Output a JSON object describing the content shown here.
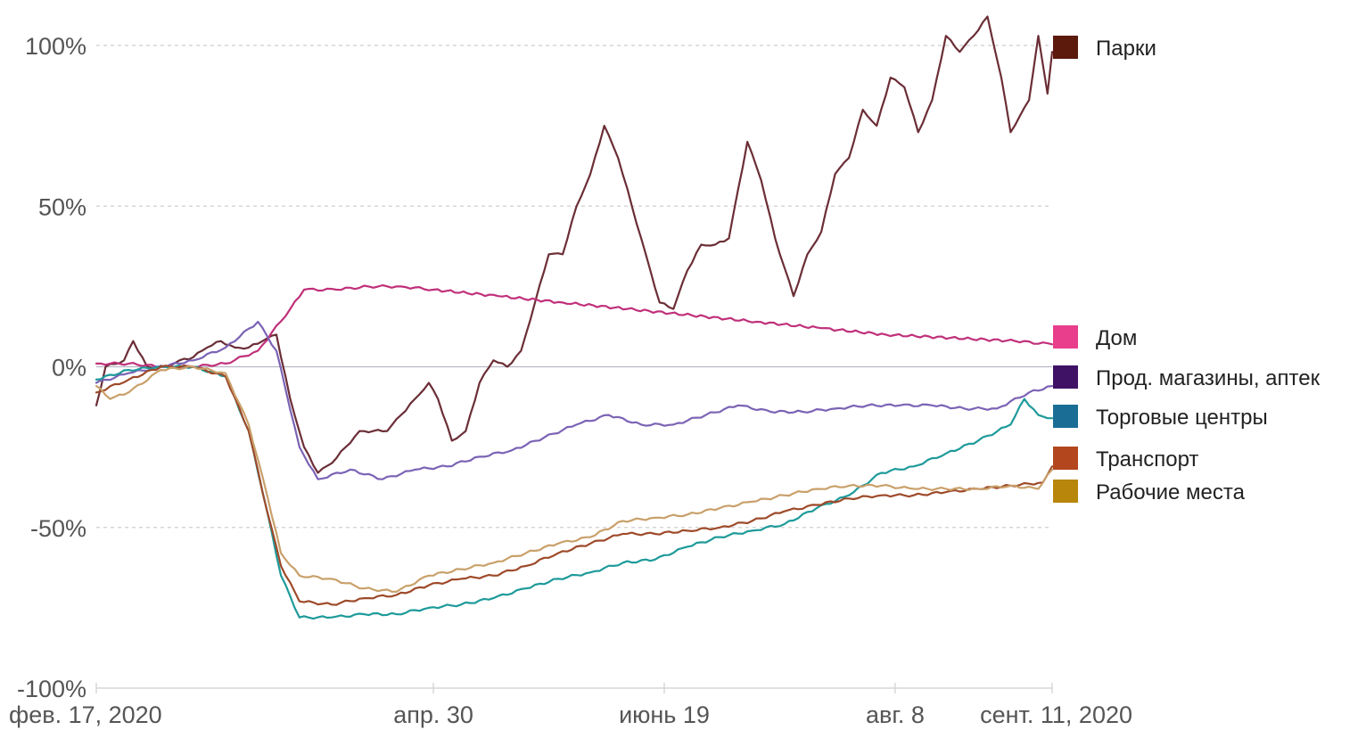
{
  "chart_data": {
    "type": "line",
    "title": "",
    "xlabel": "",
    "ylabel": "",
    "ylim": [
      -100,
      100
    ],
    "y_ticks": [
      {
        "value": 100,
        "label": "100%"
      },
      {
        "value": 50,
        "label": "50%"
      },
      {
        "value": 0,
        "label": "0%"
      },
      {
        "value": -50,
        "label": "-50%"
      },
      {
        "value": -100,
        "label": "-100%"
      }
    ],
    "x_range": [
      "2020-02-17",
      "2020-09-11"
    ],
    "x_ticks": [
      {
        "date": "2020-02-17",
        "label": "фев. 17, 2020"
      },
      {
        "date": "2020-04-30",
        "label": "апр. 30"
      },
      {
        "date": "2020-06-19",
        "label": "июнь 19"
      },
      {
        "date": "2020-08-08",
        "label": "авг. 8"
      },
      {
        "date": "2020-09-11",
        "label": "сент. 11, 2020"
      }
    ],
    "grid": true,
    "legend_placement": "right",
    "series": [
      {
        "name": "Парки",
        "color": "#6b2e36",
        "legend_color": "#5c1a0c",
        "points": [
          [
            "2020-02-17",
            -12
          ],
          [
            "2020-02-19",
            0
          ],
          [
            "2020-02-23",
            2
          ],
          [
            "2020-02-25",
            8
          ],
          [
            "2020-02-28",
            0
          ],
          [
            "2020-03-03",
            0
          ],
          [
            "2020-03-06",
            2
          ],
          [
            "2020-03-09",
            3
          ],
          [
            "2020-03-12",
            6
          ],
          [
            "2020-03-15",
            8
          ],
          [
            "2020-03-18",
            6
          ],
          [
            "2020-03-21",
            6
          ],
          [
            "2020-03-24",
            8
          ],
          [
            "2020-03-27",
            10
          ],
          [
            "2020-03-30",
            -10
          ],
          [
            "2020-04-02",
            -25
          ],
          [
            "2020-04-05",
            -33
          ],
          [
            "2020-04-08",
            -30
          ],
          [
            "2020-04-11",
            -25
          ],
          [
            "2020-04-14",
            -20
          ],
          [
            "2020-04-17",
            -20
          ],
          [
            "2020-04-20",
            -20
          ],
          [
            "2020-04-23",
            -15
          ],
          [
            "2020-04-26",
            -10
          ],
          [
            "2020-04-29",
            -5
          ],
          [
            "2020-05-01",
            -10
          ],
          [
            "2020-05-04",
            -23
          ],
          [
            "2020-05-07",
            -20
          ],
          [
            "2020-05-10",
            -5
          ],
          [
            "2020-05-13",
            2
          ],
          [
            "2020-05-16",
            0
          ],
          [
            "2020-05-19",
            5
          ],
          [
            "2020-05-22",
            20
          ],
          [
            "2020-05-25",
            35
          ],
          [
            "2020-05-28",
            35
          ],
          [
            "2020-05-31",
            50
          ],
          [
            "2020-06-03",
            60
          ],
          [
            "2020-06-06",
            75
          ],
          [
            "2020-06-09",
            65
          ],
          [
            "2020-06-12",
            50
          ],
          [
            "2020-06-15",
            35
          ],
          [
            "2020-06-18",
            20
          ],
          [
            "2020-06-21",
            18
          ],
          [
            "2020-06-24",
            30
          ],
          [
            "2020-06-27",
            38
          ],
          [
            "2020-06-30",
            38
          ],
          [
            "2020-07-03",
            40
          ],
          [
            "2020-07-07",
            70
          ],
          [
            "2020-07-10",
            58
          ],
          [
            "2020-07-13",
            40
          ],
          [
            "2020-07-17",
            22
          ],
          [
            "2020-07-20",
            35
          ],
          [
            "2020-07-23",
            42
          ],
          [
            "2020-07-26",
            60
          ],
          [
            "2020-07-29",
            65
          ],
          [
            "2020-08-01",
            80
          ],
          [
            "2020-08-04",
            75
          ],
          [
            "2020-08-07",
            90
          ],
          [
            "2020-08-10",
            87
          ],
          [
            "2020-08-13",
            73
          ],
          [
            "2020-08-16",
            83
          ],
          [
            "2020-08-19",
            103
          ],
          [
            "2020-08-22",
            98
          ],
          [
            "2020-08-25",
            103
          ],
          [
            "2020-08-28",
            109
          ],
          [
            "2020-08-31",
            90
          ],
          [
            "2020-09-02",
            73
          ],
          [
            "2020-09-04",
            78
          ],
          [
            "2020-09-06",
            83
          ],
          [
            "2020-09-08",
            103
          ],
          [
            "2020-09-10",
            85
          ],
          [
            "2020-09-11",
            98
          ]
        ]
      },
      {
        "name": "Дом",
        "color": "#c0307a",
        "legend_color": "#e83e8c",
        "points": [
          [
            "2020-02-17",
            1
          ],
          [
            "2020-02-24",
            1
          ],
          [
            "2020-03-02",
            0
          ],
          [
            "2020-03-09",
            0
          ],
          [
            "2020-03-16",
            1
          ],
          [
            "2020-03-23",
            5
          ],
          [
            "2020-03-30",
            18
          ],
          [
            "2020-04-02",
            24
          ],
          [
            "2020-04-09",
            24
          ],
          [
            "2020-04-16",
            25
          ],
          [
            "2020-04-23",
            25
          ],
          [
            "2020-04-30",
            24
          ],
          [
            "2020-05-14",
            22
          ],
          [
            "2020-05-28",
            20
          ],
          [
            "2020-06-11",
            18
          ],
          [
            "2020-06-25",
            16
          ],
          [
            "2020-07-09",
            14
          ],
          [
            "2020-07-23",
            12
          ],
          [
            "2020-08-06",
            10
          ],
          [
            "2020-08-20",
            9
          ],
          [
            "2020-09-03",
            8
          ],
          [
            "2020-09-11",
            7
          ]
        ]
      },
      {
        "name": "Прод. магазины, аптек",
        "color": "#7b63b5",
        "legend_color": "#3f1266",
        "points": [
          [
            "2020-02-17",
            -5
          ],
          [
            "2020-02-24",
            -2
          ],
          [
            "2020-03-02",
            0
          ],
          [
            "2020-03-09",
            2
          ],
          [
            "2020-03-16",
            6
          ],
          [
            "2020-03-23",
            14
          ],
          [
            "2020-03-27",
            5
          ],
          [
            "2020-04-01",
            -25
          ],
          [
            "2020-04-05",
            -35
          ],
          [
            "2020-04-12",
            -32
          ],
          [
            "2020-04-19",
            -35
          ],
          [
            "2020-04-26",
            -32
          ],
          [
            "2020-05-03",
            -31
          ],
          [
            "2020-05-10",
            -28
          ],
          [
            "2020-05-17",
            -26
          ],
          [
            "2020-05-24",
            -22
          ],
          [
            "2020-05-31",
            -18
          ],
          [
            "2020-06-07",
            -15
          ],
          [
            "2020-06-14",
            -18
          ],
          [
            "2020-06-21",
            -18
          ],
          [
            "2020-06-28",
            -15
          ],
          [
            "2020-07-05",
            -12
          ],
          [
            "2020-07-12",
            -14
          ],
          [
            "2020-07-19",
            -14
          ],
          [
            "2020-07-26",
            -13
          ],
          [
            "2020-08-02",
            -12
          ],
          [
            "2020-08-09",
            -12
          ],
          [
            "2020-08-16",
            -12
          ],
          [
            "2020-08-23",
            -13
          ],
          [
            "2020-08-30",
            -13
          ],
          [
            "2020-09-06",
            -8
          ],
          [
            "2020-09-11",
            -6
          ]
        ]
      },
      {
        "name": "Торговые центры",
        "color": "#1e9a9a",
        "legend_color": "#1a6e96",
        "points": [
          [
            "2020-02-17",
            -4
          ],
          [
            "2020-02-24",
            -1
          ],
          [
            "2020-03-02",
            0
          ],
          [
            "2020-03-09",
            0
          ],
          [
            "2020-03-16",
            -3
          ],
          [
            "2020-03-21",
            -20
          ],
          [
            "2020-03-25",
            -45
          ],
          [
            "2020-03-28",
            -65
          ],
          [
            "2020-04-01",
            -78
          ],
          [
            "2020-04-08",
            -78
          ],
          [
            "2020-04-15",
            -77
          ],
          [
            "2020-04-22",
            -77
          ],
          [
            "2020-04-29",
            -75
          ],
          [
            "2020-05-06",
            -74
          ],
          [
            "2020-05-13",
            -72
          ],
          [
            "2020-05-20",
            -69
          ],
          [
            "2020-05-27",
            -66
          ],
          [
            "2020-06-03",
            -64
          ],
          [
            "2020-06-10",
            -61
          ],
          [
            "2020-06-17",
            -60
          ],
          [
            "2020-06-24",
            -56
          ],
          [
            "2020-07-01",
            -53
          ],
          [
            "2020-07-08",
            -51
          ],
          [
            "2020-07-15",
            -49
          ],
          [
            "2020-07-22",
            -44
          ],
          [
            "2020-07-29",
            -40
          ],
          [
            "2020-08-05",
            -33
          ],
          [
            "2020-08-12",
            -31
          ],
          [
            "2020-08-19",
            -27
          ],
          [
            "2020-08-26",
            -23
          ],
          [
            "2020-09-02",
            -18
          ],
          [
            "2020-09-05",
            -10
          ],
          [
            "2020-09-08",
            -15
          ],
          [
            "2020-09-11",
            -16
          ]
        ]
      },
      {
        "name": "Транспорт",
        "color": "#9e4a2a",
        "legend_color": "#b3461c",
        "points": [
          [
            "2020-02-17",
            -8
          ],
          [
            "2020-02-24",
            -4
          ],
          [
            "2020-03-02",
            0
          ],
          [
            "2020-03-09",
            0
          ],
          [
            "2020-03-16",
            -3
          ],
          [
            "2020-03-21",
            -20
          ],
          [
            "2020-03-25",
            -45
          ],
          [
            "2020-03-28",
            -62
          ],
          [
            "2020-04-01",
            -73
          ],
          [
            "2020-04-08",
            -74
          ],
          [
            "2020-04-15",
            -72
          ],
          [
            "2020-04-22",
            -71
          ],
          [
            "2020-04-29",
            -68
          ],
          [
            "2020-05-06",
            -66
          ],
          [
            "2020-05-13",
            -65
          ],
          [
            "2020-05-20",
            -62
          ],
          [
            "2020-05-27",
            -58
          ],
          [
            "2020-06-03",
            -55
          ],
          [
            "2020-06-10",
            -52
          ],
          [
            "2020-06-17",
            -52
          ],
          [
            "2020-06-24",
            -51
          ],
          [
            "2020-07-01",
            -50
          ],
          [
            "2020-07-08",
            -48
          ],
          [
            "2020-07-15",
            -45
          ],
          [
            "2020-07-22",
            -43
          ],
          [
            "2020-07-29",
            -41
          ],
          [
            "2020-08-05",
            -40
          ],
          [
            "2020-08-12",
            -40
          ],
          [
            "2020-08-19",
            -39
          ],
          [
            "2020-08-26",
            -38
          ],
          [
            "2020-09-02",
            -37
          ],
          [
            "2020-09-09",
            -36
          ],
          [
            "2020-09-11",
            -31
          ]
        ]
      },
      {
        "name": "Рабочие места",
        "color": "#c9a06a",
        "legend_color": "#b8860b",
        "points": [
          [
            "2020-02-17",
            -6
          ],
          [
            "2020-02-20",
            -10
          ],
          [
            "2020-02-24",
            -8
          ],
          [
            "2020-03-02",
            -1
          ],
          [
            "2020-03-09",
            0
          ],
          [
            "2020-03-16",
            -2
          ],
          [
            "2020-03-21",
            -18
          ],
          [
            "2020-03-25",
            -40
          ],
          [
            "2020-03-28",
            -58
          ],
          [
            "2020-04-01",
            -65
          ],
          [
            "2020-04-08",
            -66
          ],
          [
            "2020-04-15",
            -69
          ],
          [
            "2020-04-22",
            -70
          ],
          [
            "2020-04-29",
            -65
          ],
          [
            "2020-05-06",
            -63
          ],
          [
            "2020-05-13",
            -61
          ],
          [
            "2020-05-20",
            -58
          ],
          [
            "2020-05-27",
            -55
          ],
          [
            "2020-06-03",
            -53
          ],
          [
            "2020-06-10",
            -48
          ],
          [
            "2020-06-17",
            -47
          ],
          [
            "2020-06-24",
            -46
          ],
          [
            "2020-07-01",
            -44
          ],
          [
            "2020-07-08",
            -42
          ],
          [
            "2020-07-15",
            -40
          ],
          [
            "2020-07-22",
            -38
          ],
          [
            "2020-07-29",
            -37
          ],
          [
            "2020-08-05",
            -37
          ],
          [
            "2020-08-12",
            -38
          ],
          [
            "2020-08-19",
            -38
          ],
          [
            "2020-08-26",
            -38
          ],
          [
            "2020-09-02",
            -37
          ],
          [
            "2020-09-08",
            -38
          ],
          [
            "2020-09-11",
            -32
          ]
        ]
      }
    ]
  }
}
